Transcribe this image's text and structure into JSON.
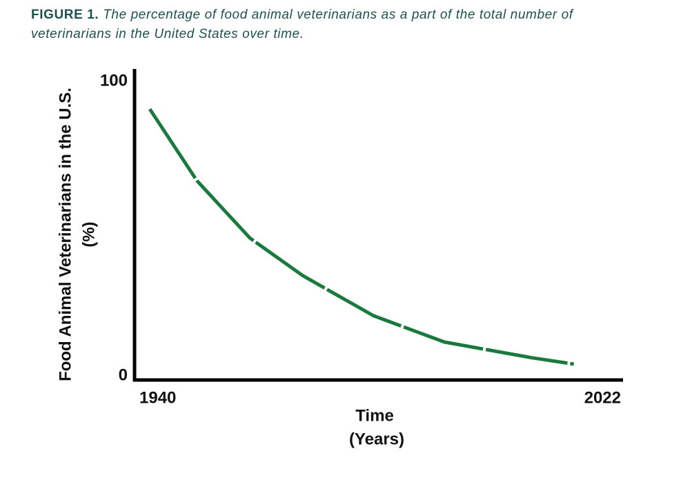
{
  "chart_data": {
    "type": "line",
    "figure_label": "FIGURE 1.",
    "title": "The percentage of food animal veterinarians as a part of the total number of veterinarians in the United States over time.",
    "xlabel": [
      "Time",
      "(Years)"
    ],
    "ylabel": [
      "Food Animal Veterinarians in the U.S.",
      "(%)"
    ],
    "x": [
      1942,
      1950,
      1959,
      1968,
      1980,
      1992,
      2007,
      2014
    ],
    "series": [
      {
        "color": "#1a7a3e",
        "values": [
          90.6,
          66.3,
          46.8,
          34,
          20.4,
          11.5,
          6.1,
          4
        ]
      }
    ],
    "xlim": [
      1940,
      2022
    ],
    "xticks": [
      1940,
      2022
    ],
    "ylim": [
      0,
      100
    ],
    "yticks": [
      0,
      100
    ],
    "grid": false
  }
}
